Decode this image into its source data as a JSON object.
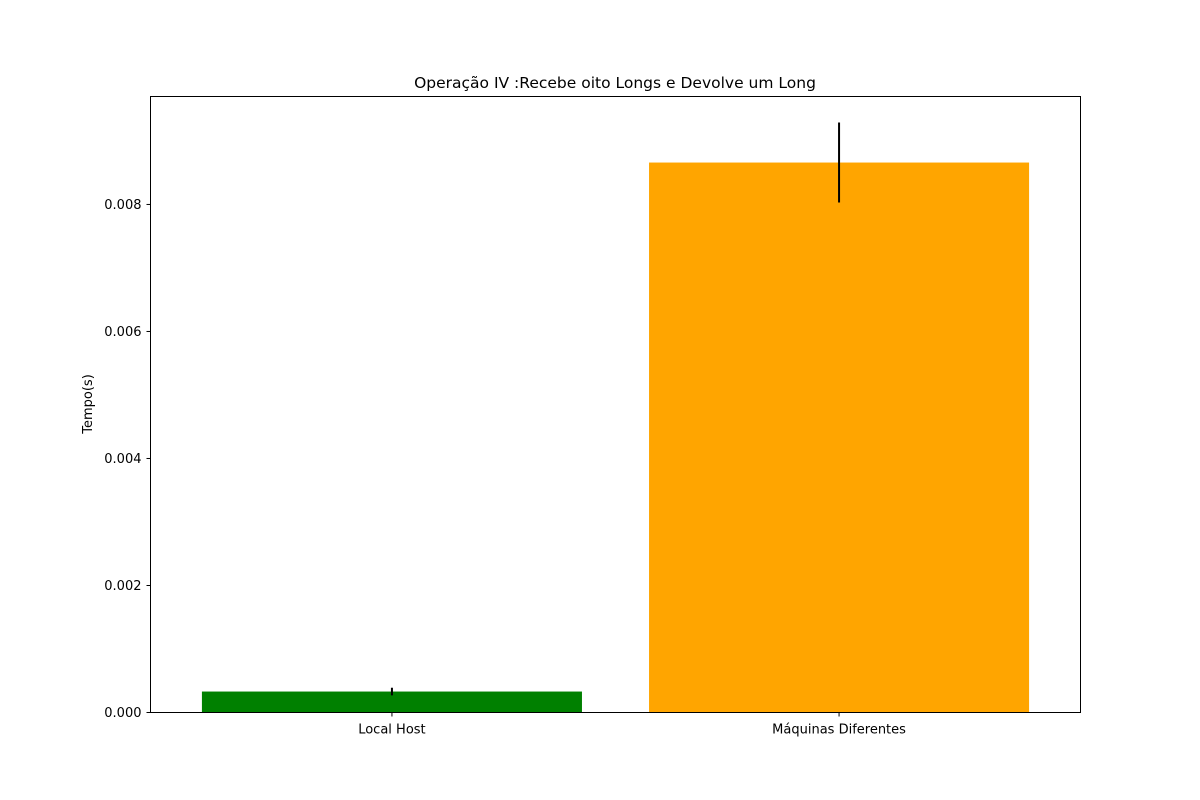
{
  "chart_data": {
    "type": "bar",
    "title": "Operação IV :Recebe oito Longs e Devolve um Long",
    "xlabel": "",
    "ylabel": "Tempo(s)",
    "categories": [
      "Local Host",
      "Máquinas Diferentes"
    ],
    "values": [
      0.00033,
      0.00866
    ],
    "errors": [
      6e-05,
      0.00063
    ],
    "colors": [
      "#008000",
      "#ffa500"
    ],
    "ylim": [
      0,
      0.0097
    ],
    "yticks": [
      0.0,
      0.002,
      0.004,
      0.006,
      0.008
    ],
    "ytick_labels": [
      "0.000",
      "0.002",
      "0.004",
      "0.006",
      "0.008"
    ],
    "grid": false,
    "legend": false
  }
}
